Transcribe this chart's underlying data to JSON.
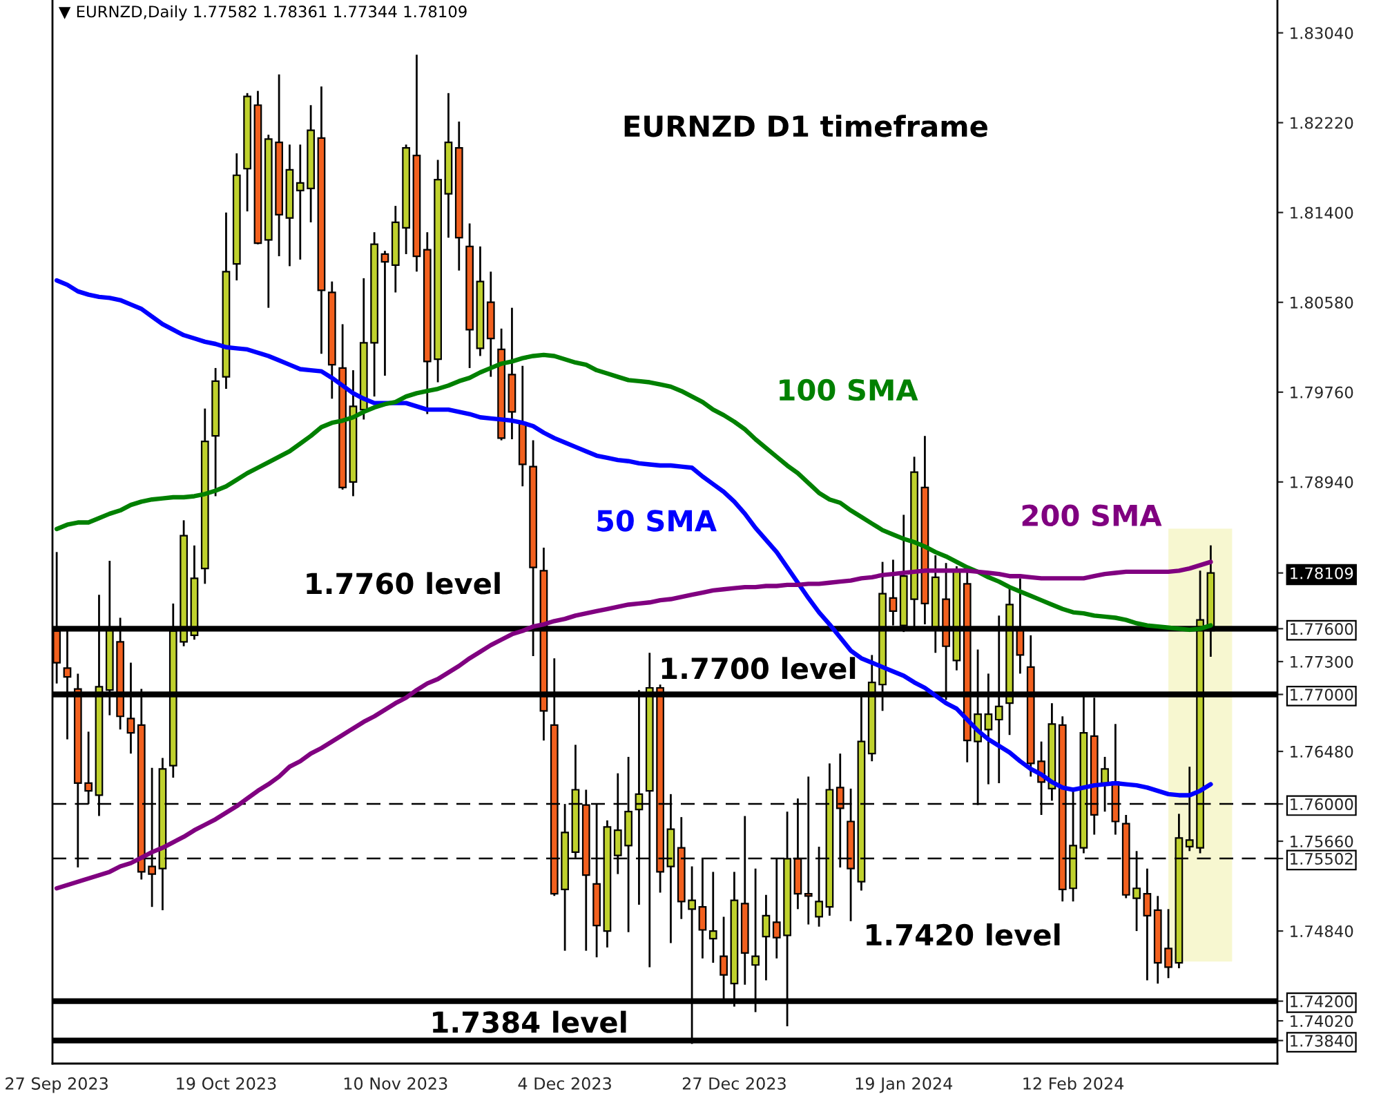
{
  "chart_data": {
    "type": "candlestick",
    "title": "EURNZD D1 timeframe",
    "subtitle": "▼ EURNZD,Daily 1.77582 1.78361 1.77344 1.78109",
    "categories": [
      "27 Sep 2023",
      null,
      null,
      null,
      null,
      null,
      null,
      null,
      null,
      null,
      null,
      null,
      null,
      null,
      null,
      null,
      "19 Oct 2023",
      null,
      null,
      null,
      null,
      null,
      null,
      null,
      null,
      null,
      null,
      null,
      null,
      null,
      null,
      null,
      "10 Nov 2023",
      null,
      null,
      null,
      null,
      null,
      null,
      null,
      null,
      null,
      null,
      null,
      null,
      null,
      null,
      null,
      "4 Dec 2023",
      null,
      null,
      null,
      null,
      null,
      null,
      null,
      null,
      null,
      null,
      null,
      null,
      null,
      null,
      null,
      "27 Dec 2023",
      null,
      null,
      null,
      null,
      null,
      null,
      null,
      null,
      null,
      null,
      null,
      null,
      null,
      null,
      null,
      "19 Jan 2024",
      null,
      null,
      null,
      null,
      null,
      null,
      null,
      null,
      null,
      null,
      null,
      null,
      null,
      null,
      null,
      "12 Feb 2024",
      null,
      null,
      null,
      null,
      null,
      null,
      null,
      null,
      null,
      null,
      null,
      null,
      null,
      null,
      null,
      null,
      null,
      null,
      null
    ],
    "ohlc": [
      [
        1.7758,
        1.783,
        1.771,
        1.7729
      ],
      [
        1.7724,
        1.7758,
        1.7659,
        1.7716
      ],
      [
        1.7705,
        1.7719,
        1.7542,
        1.7619
      ],
      [
        1.7619,
        1.7666,
        1.76,
        1.7612
      ],
      [
        1.7608,
        1.7791,
        1.7589,
        1.7707
      ],
      [
        1.7704,
        1.7822,
        1.7681,
        1.776
      ],
      [
        1.7748,
        1.777,
        1.7668,
        1.768
      ],
      [
        1.7678,
        1.7729,
        1.7646,
        1.7665
      ],
      [
        1.7672,
        1.7705,
        1.7531,
        1.7538
      ],
      [
        1.7543,
        1.7633,
        1.7506,
        1.7536
      ],
      [
        1.7541,
        1.7642,
        1.7503,
        1.7632
      ],
      [
        1.7635,
        1.7783,
        1.7624,
        1.7758
      ],
      [
        1.7748,
        1.7859,
        1.7744,
        1.7845
      ],
      [
        1.7754,
        1.7836,
        1.775,
        1.7806
      ],
      [
        1.7815,
        1.7961,
        1.7801,
        1.7931
      ],
      [
        1.7936,
        1.7998,
        1.7881,
        1.7986
      ],
      [
        1.799,
        1.814,
        1.7979,
        1.8086
      ],
      [
        1.8093,
        1.8194,
        1.8078,
        1.8174
      ],
      [
        1.818,
        1.8249,
        1.8141,
        1.8246
      ],
      [
        1.8238,
        1.8251,
        1.8111,
        1.8112
      ],
      [
        1.8115,
        1.8211,
        1.8053,
        1.8207
      ],
      [
        1.8204,
        1.8266,
        1.81,
        1.8138
      ],
      [
        1.8135,
        1.8202,
        1.8091,
        1.8179
      ],
      [
        1.816,
        1.8202,
        1.8097,
        1.8167
      ],
      [
        1.8162,
        1.8238,
        1.8131,
        1.8215
      ],
      [
        1.8208,
        1.8255,
        1.8011,
        1.8069
      ],
      [
        1.8067,
        1.8077,
        1.797,
        1.8001
      ],
      [
        1.7998,
        1.8038,
        1.7887,
        1.7889
      ],
      [
        1.7894,
        1.7996,
        1.7881,
        1.7963
      ],
      [
        1.796,
        1.808,
        1.7951,
        1.8021
      ],
      [
        1.8021,
        1.8122,
        1.7972,
        1.8111
      ],
      [
        1.8102,
        1.8105,
        1.7991,
        1.8095
      ],
      [
        1.8092,
        1.8146,
        1.8067,
        1.8131
      ],
      [
        1.8126,
        1.8202,
        1.8102,
        1.8199
      ],
      [
        1.8192,
        1.8284,
        1.8086,
        1.81
      ],
      [
        1.8106,
        1.8122,
        1.7956,
        1.8004
      ],
      [
        1.8006,
        1.8188,
        1.7985,
        1.817
      ],
      [
        1.8157,
        1.8249,
        1.8117,
        1.8204
      ],
      [
        1.8199,
        1.8223,
        1.8087,
        1.8117
      ],
      [
        1.8109,
        1.813,
        1.7998,
        1.8033
      ],
      [
        1.8016,
        1.8109,
        1.8009,
        1.8077
      ],
      [
        1.8058,
        1.8086,
        1.799,
        1.8025
      ],
      [
        1.8015,
        1.8034,
        1.7932,
        1.7934
      ],
      [
        1.7992,
        1.8053,
        1.7933,
        1.7958
      ],
      [
        1.7947,
        1.8,
        1.789,
        1.791
      ],
      [
        1.7908,
        1.7932,
        1.7735,
        1.7816
      ],
      [
        1.7813,
        1.7834,
        1.7658,
        1.7685
      ],
      [
        1.7672,
        1.7733,
        1.7516,
        1.7518
      ],
      [
        1.7522,
        1.76,
        1.7466,
        1.7574
      ],
      [
        1.7556,
        1.7654,
        1.7551,
        1.7613
      ],
      [
        1.7599,
        1.7613,
        1.7466,
        1.7535
      ],
      [
        1.7527,
        1.76,
        1.746,
        1.7489
      ],
      [
        1.7484,
        1.7585,
        1.7469,
        1.7579
      ],
      [
        1.7553,
        1.7628,
        1.7536,
        1.7576
      ],
      [
        1.7562,
        1.7643,
        1.7483,
        1.7593
      ],
      [
        1.7595,
        1.7704,
        1.7508,
        1.7609
      ],
      [
        1.7612,
        1.7738,
        1.7451,
        1.7706
      ],
      [
        1.7706,
        1.7709,
        1.7519,
        1.7538
      ],
      [
        1.7543,
        1.7609,
        1.7473,
        1.7577
      ],
      [
        1.756,
        1.7588,
        1.7495,
        1.7511
      ],
      [
        1.7504,
        1.7543,
        1.7381,
        1.7512
      ],
      [
        1.7506,
        1.7551,
        1.7459,
        1.7485
      ],
      [
        1.7477,
        1.7538,
        1.7455,
        1.7484
      ],
      [
        1.7461,
        1.7497,
        1.7422,
        1.7444
      ],
      [
        1.7436,
        1.7538,
        1.7415,
        1.7512
      ],
      [
        1.7509,
        1.7589,
        1.7435,
        1.7464
      ],
      [
        1.7453,
        1.7541,
        1.741,
        1.7461
      ],
      [
        1.7479,
        1.7517,
        1.7439,
        1.7498
      ],
      [
        1.7492,
        1.755,
        1.7459,
        1.7478
      ],
      [
        1.748,
        1.7593,
        1.7397,
        1.755
      ],
      [
        1.755,
        1.7605,
        1.7504,
        1.7518
      ],
      [
        1.7518,
        1.7625,
        1.749,
        1.7516
      ],
      [
        1.7497,
        1.7561,
        1.7488,
        1.7511
      ],
      [
        1.7506,
        1.7637,
        1.7498,
        1.7613
      ],
      [
        1.7615,
        1.7646,
        1.7542,
        1.7596
      ],
      [
        1.7584,
        1.7614,
        1.7493,
        1.7541
      ],
      [
        1.7529,
        1.77,
        1.7521,
        1.7657
      ],
      [
        1.7646,
        1.7736,
        1.7639,
        1.7711
      ],
      [
        1.7709,
        1.7821,
        1.7685,
        1.7792
      ],
      [
        1.7788,
        1.7823,
        1.7763,
        1.7776
      ],
      [
        1.7763,
        1.7864,
        1.7757,
        1.7808
      ],
      [
        1.7787,
        1.7917,
        1.776,
        1.7903
      ],
      [
        1.7889,
        1.7936,
        1.7764,
        1.7783
      ],
      [
        1.776,
        1.7827,
        1.7738,
        1.7807
      ],
      [
        1.7787,
        1.782,
        1.7695,
        1.7744
      ],
      [
        1.7731,
        1.7817,
        1.7722,
        1.7812
      ],
      [
        1.7801,
        1.7813,
        1.7638,
        1.7658
      ],
      [
        1.7657,
        1.7741,
        1.7599,
        1.7682
      ],
      [
        1.7668,
        1.7719,
        1.7618,
        1.7682
      ],
      [
        1.7677,
        1.7772,
        1.7619,
        1.7689
      ],
      [
        1.7692,
        1.7797,
        1.7663,
        1.7782
      ],
      [
        1.7759,
        1.7806,
        1.7719,
        1.7736
      ],
      [
        1.7725,
        1.7754,
        1.7625,
        1.7637
      ],
      [
        1.7639,
        1.7657,
        1.759,
        1.762
      ],
      [
        1.7614,
        1.7692,
        1.7603,
        1.7673
      ],
      [
        1.7672,
        1.768,
        1.7511,
        1.7522
      ],
      [
        1.7523,
        1.7614,
        1.7511,
        1.7562
      ],
      [
        1.756,
        1.77,
        1.7555,
        1.7665
      ],
      [
        1.7662,
        1.7697,
        1.7572,
        1.759
      ],
      [
        1.7619,
        1.7643,
        1.7593,
        1.7632
      ],
      [
        1.762,
        1.7673,
        1.7572,
        1.7584
      ],
      [
        1.7582,
        1.759,
        1.7514,
        1.7517
      ],
      [
        1.7514,
        1.7557,
        1.7484,
        1.7523
      ],
      [
        1.7518,
        1.7541,
        1.7439,
        1.7498
      ],
      [
        1.7503,
        1.7516,
        1.7436,
        1.7455
      ],
      [
        1.7468,
        1.7504,
        1.7441,
        1.7451
      ],
      [
        1.7455,
        1.7591,
        1.745,
        1.7569
      ],
      [
        1.7561,
        1.7634,
        1.7557,
        1.7567
      ],
      [
        1.756,
        1.7813,
        1.7555,
        1.7768
      ],
      [
        1.77582,
        1.78361,
        1.77344,
        1.78109
      ],
      null,
      null,
      null,
      null,
      null,
      null
    ],
    "colors": [
      "#f2601e",
      "#f2601e",
      "#f2601e",
      "#f2601e",
      "#bfd12d",
      "#bfd12d",
      "#f2601e",
      "#f2601e",
      "#f2601e",
      "#f2601e",
      "#bfd12d",
      "#bfd12d",
      "#bfd12d",
      "#bfd12d",
      "#bfd12d",
      "#bfd12d",
      "#bfd12d",
      "#bfd12d",
      "#bfd12d",
      "#f2601e",
      "#bfd12d",
      "#f2601e",
      "#bfd12d",
      "#bfd12d",
      "#bfd12d",
      "#f2601e",
      "#f2601e",
      "#f2601e",
      "#bfd12d",
      "#bfd12d",
      "#bfd12d",
      "#f2601e",
      "#bfd12d",
      "#bfd12d",
      "#f2601e",
      "#f2601e",
      "#bfd12d",
      "#bfd12d",
      "#f2601e",
      "#f2601e",
      "#bfd12d",
      "#f2601e",
      "#f2601e",
      "#f2601e",
      "#f2601e",
      "#f2601e",
      "#f2601e",
      "#f2601e",
      "#bfd12d",
      "#bfd12d",
      "#f2601e",
      "#f2601e",
      "#bfd12d",
      "#bfd12d",
      "#bfd12d",
      "#bfd12d",
      "#bfd12d",
      "#f2601e",
      "#bfd12d",
      "#f2601e",
      "#bfd12d",
      "#f2601e",
      "#bfd12d",
      "#f2601e",
      "#bfd12d",
      "#f2601e",
      "#bfd12d",
      "#bfd12d",
      "#f2601e",
      "#bfd12d",
      "#f2601e",
      "#f2601e",
      "#bfd12d",
      "#bfd12d",
      "#f2601e",
      "#f2601e",
      "#bfd12d",
      "#bfd12d",
      "#bfd12d",
      "#f2601e",
      "#bfd12d",
      "#bfd12d",
      "#f2601e",
      "#bfd12d",
      "#f2601e",
      "#bfd12d",
      "#f2601e",
      "#bfd12d",
      "#bfd12d",
      "#bfd12d",
      "#bfd12d",
      "#f2601e",
      "#f2601e",
      "#f2601e",
      "#bfd12d",
      "#f2601e",
      "#bfd12d",
      "#bfd12d",
      "#f2601e",
      "#bfd12d",
      "#f2601e",
      "#f2601e",
      "#bfd12d",
      "#f2601e",
      "#f2601e",
      "#f2601e",
      "#bfd12d",
      "#bfd12d",
      "#bfd12d",
      "#bfd12d",
      null,
      null,
      null,
      null,
      null,
      null
    ],
    "series": [
      {
        "name": "50 SMA",
        "type": "line",
        "color": "#0000ff",
        "values": [
          1.8078,
          1.8074,
          1.8068,
          1.8065,
          1.8063,
          1.8062,
          1.806,
          1.8056,
          1.8052,
          1.8045,
          1.8038,
          1.8033,
          1.8028,
          1.8025,
          1.8022,
          1.802,
          1.8017,
          1.8016,
          1.8015,
          1.8012,
          1.8009,
          1.8005,
          1.8001,
          1.7997,
          1.7996,
          1.7995,
          1.7989,
          1.7982,
          1.7975,
          1.797,
          1.7966,
          1.7966,
          1.7966,
          1.7966,
          1.7963,
          1.796,
          1.796,
          1.796,
          1.7958,
          1.7956,
          1.7953,
          1.7952,
          1.7951,
          1.795,
          1.7948,
          1.7945,
          1.7939,
          1.7934,
          1.793,
          1.7926,
          1.7922,
          1.7918,
          1.7916,
          1.7914,
          1.7913,
          1.7911,
          1.791,
          1.7909,
          1.7909,
          1.7908,
          1.7907,
          1.7899,
          1.7892,
          1.7885,
          1.7876,
          1.7865,
          1.7852,
          1.7841,
          1.783,
          1.7816,
          1.7802,
          1.7788,
          1.7775,
          1.7764,
          1.7752,
          1.774,
          1.7733,
          1.7729,
          1.7725,
          1.7721,
          1.7717,
          1.7711,
          1.7706,
          1.7699,
          1.7692,
          1.7687,
          1.7677,
          1.7667,
          1.7659,
          1.7653,
          1.7647,
          1.7639,
          1.7632,
          1.7627,
          1.762,
          1.7615,
          1.7613,
          1.7615,
          1.7617,
          1.7618,
          1.7619,
          1.7618,
          1.7617,
          1.7615,
          1.7612,
          1.7609,
          1.7608,
          1.7608,
          1.7612,
          1.7618,
          null,
          null,
          null,
          null,
          null,
          null
        ]
      },
      {
        "name": "100 SMA",
        "type": "line",
        "color": "#008000",
        "values": [
          1.7851,
          1.7855,
          1.7857,
          1.7857,
          1.7861,
          1.7865,
          1.7868,
          1.7873,
          1.7876,
          1.7878,
          1.7879,
          1.788,
          1.788,
          1.7881,
          1.7883,
          1.7886,
          1.789,
          1.7896,
          1.7902,
          1.7907,
          1.7912,
          1.7917,
          1.7922,
          1.7929,
          1.7936,
          1.7944,
          1.7948,
          1.795,
          1.7953,
          1.7958,
          1.7962,
          1.7965,
          1.7967,
          1.7972,
          1.7975,
          1.7977,
          1.7979,
          1.7982,
          1.7986,
          1.7989,
          1.7994,
          1.7998,
          1.8002,
          1.8004,
          1.8007,
          1.8009,
          1.801,
          1.8009,
          1.8006,
          1.8003,
          1.8001,
          1.7996,
          1.7993,
          1.799,
          1.7987,
          1.7986,
          1.7985,
          1.7983,
          1.7981,
          1.7977,
          1.7972,
          1.7967,
          1.796,
          1.7955,
          1.7949,
          1.7942,
          1.7933,
          1.7925,
          1.7917,
          1.7909,
          1.7902,
          1.7893,
          1.7884,
          1.7878,
          1.7875,
          1.7868,
          1.7862,
          1.7856,
          1.785,
          1.7846,
          1.7842,
          1.7839,
          1.7835,
          1.783,
          1.7826,
          1.7821,
          1.7816,
          1.7812,
          1.7807,
          1.7803,
          1.7798,
          1.7794,
          1.779,
          1.7786,
          1.7782,
          1.7778,
          1.7775,
          1.7774,
          1.7772,
          1.7771,
          1.777,
          1.7768,
          1.7765,
          1.7763,
          1.7762,
          1.7761,
          1.776,
          1.7759,
          1.776,
          1.7763,
          null,
          null,
          null,
          null,
          null,
          null
        ]
      },
      {
        "name": "200 SMA",
        "type": "line",
        "color": "#800080",
        "values": [
          1.7523,
          1.7526,
          1.7529,
          1.7532,
          1.7535,
          1.7538,
          1.7543,
          1.7546,
          1.7551,
          1.7556,
          1.756,
          1.7565,
          1.757,
          1.7576,
          1.7581,
          1.7586,
          1.7592,
          1.7598,
          1.7605,
          1.7612,
          1.7618,
          1.7625,
          1.7634,
          1.7639,
          1.7646,
          1.7651,
          1.7657,
          1.7663,
          1.7669,
          1.7675,
          1.768,
          1.7686,
          1.7692,
          1.7697,
          1.7704,
          1.771,
          1.7714,
          1.772,
          1.7726,
          1.7733,
          1.7739,
          1.7745,
          1.775,
          1.7755,
          1.7758,
          1.7762,
          1.7764,
          1.7767,
          1.7769,
          1.7772,
          1.7774,
          1.7776,
          1.7778,
          1.778,
          1.7782,
          1.7783,
          1.7784,
          1.7786,
          1.7787,
          1.7789,
          1.7791,
          1.7793,
          1.7795,
          1.7796,
          1.7797,
          1.7798,
          1.7798,
          1.7799,
          1.7799,
          1.78,
          1.78,
          1.7801,
          1.7801,
          1.7802,
          1.7803,
          1.7804,
          1.7806,
          1.7807,
          1.7809,
          1.781,
          1.7811,
          1.7812,
          1.7813,
          1.7813,
          1.7813,
          1.7813,
          1.7813,
          1.7812,
          1.7811,
          1.781,
          1.7808,
          1.7808,
          1.7807,
          1.7806,
          1.7806,
          1.7806,
          1.7806,
          1.7806,
          1.7808,
          1.781,
          1.7811,
          1.7812,
          1.7812,
          1.7812,
          1.7812,
          1.7812,
          1.7813,
          1.7815,
          1.7818,
          1.7821,
          null,
          null,
          null,
          null,
          null,
          null
        ]
      }
    ],
    "ylim": [
      1.7363,
      1.8334
    ],
    "yticks": [
      {
        "value": 1.7384,
        "label": "1.73840"
      },
      {
        "value": 1.7402,
        "label": "1.74020"
      },
      {
        "value": 1.742,
        "label": "1.74200"
      },
      {
        "value": 1.7484,
        "label": "1.74840"
      },
      {
        "value": 1.75502,
        "label": "1.75502"
      },
      {
        "value": 1.7566,
        "label": "1.75660"
      },
      {
        "value": 1.76,
        "label": "1.76000"
      },
      {
        "value": 1.7648,
        "label": "1.76480"
      },
      {
        "value": 1.77,
        "label": "1.77000"
      },
      {
        "value": 1.773,
        "label": "1.77300"
      },
      {
        "value": 1.776,
        "label": "1.77600"
      },
      {
        "value": 1.78109,
        "label": "1.78109"
      },
      {
        "value": 1.7894,
        "label": "1.78940"
      },
      {
        "value": 1.7976,
        "label": "1.79760"
      },
      {
        "value": 1.8058,
        "label": "1.80580"
      },
      {
        "value": 1.814,
        "label": "1.81400"
      },
      {
        "value": 1.8222,
        "label": "1.82220"
      },
      {
        "value": 1.8304,
        "label": "1.83040"
      }
    ],
    "ref_lines": [
      {
        "axis": "y",
        "value": 1.776,
        "label": "1.7760 level",
        "color": "#000000",
        "line_style": "solid"
      },
      {
        "axis": "y",
        "value": 1.77,
        "label": "1.7700 level",
        "color": "#000000",
        "line_style": "solid"
      },
      {
        "axis": "y",
        "value": 1.742,
        "label": "1.7420 level",
        "color": "#000000",
        "line_style": "solid"
      },
      {
        "axis": "y",
        "value": 1.7384,
        "label": "1.7384 level",
        "color": "#000000",
        "line_style": "solid"
      },
      {
        "axis": "y",
        "value": 1.76,
        "color": "#000000",
        "line_style": "dashed"
      },
      {
        "axis": "y",
        "value": 1.75502,
        "color": "#000000",
        "line_style": "dashed"
      }
    ]
  }
}
